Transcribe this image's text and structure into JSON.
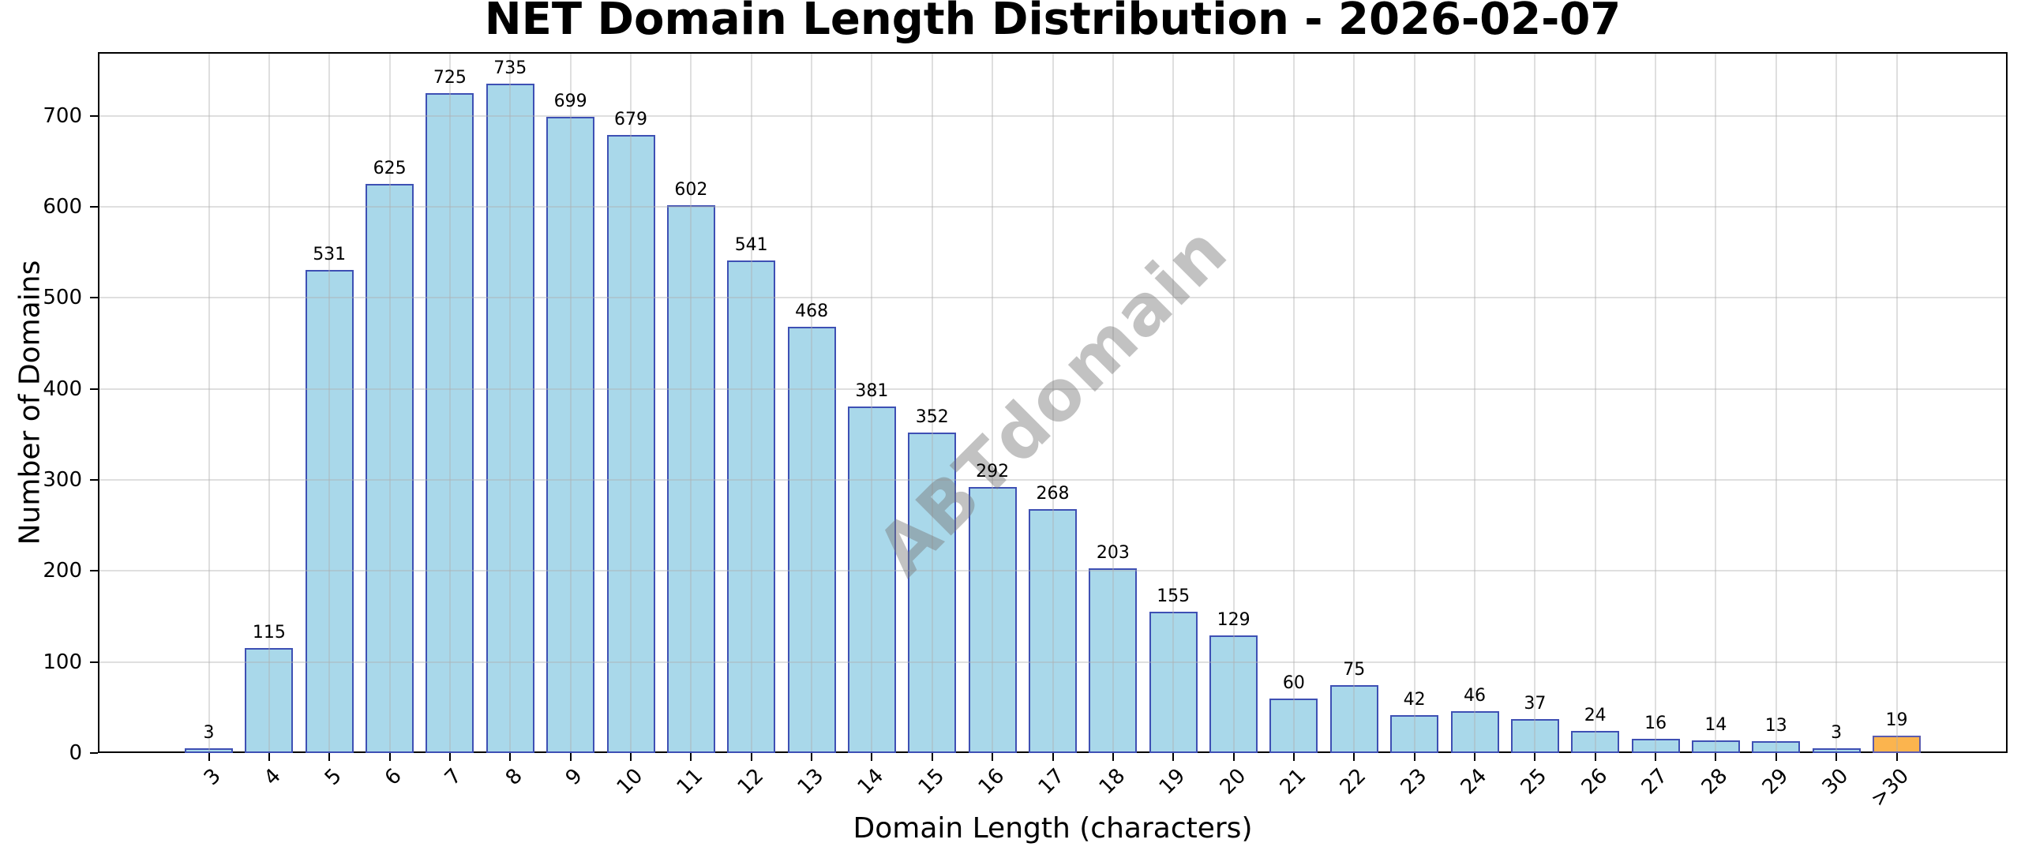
{
  "chart_data": {
    "type": "bar",
    "title": "NET Domain Length Distribution - 2026-02-07",
    "xlabel": "Domain Length (characters)",
    "ylabel": "Number of Domains",
    "watermark": "ABTdomain",
    "categories": [
      "3",
      "4",
      "5",
      "6",
      "7",
      "8",
      "9",
      "10",
      "11",
      "12",
      "13",
      "14",
      "15",
      "16",
      "17",
      "18",
      "19",
      "20",
      "21",
      "22",
      "23",
      "24",
      "25",
      "26",
      "27",
      "28",
      "29",
      "30",
      ">30"
    ],
    "values": [
      3,
      115,
      531,
      625,
      725,
      735,
      699,
      679,
      602,
      541,
      468,
      381,
      352,
      292,
      268,
      203,
      155,
      129,
      60,
      75,
      42,
      46,
      37,
      24,
      16,
      14,
      13,
      3,
      19
    ],
    "ylim": [
      0,
      770
    ],
    "yticks": [
      0,
      100,
      200,
      300,
      400,
      500,
      600,
      700
    ],
    "grid": true,
    "legend": "none",
    "bar_fill": "#A9D8EA",
    "bar_edge": "#3E50B4",
    "highlight_index": 28,
    "highlight_fill": "#FBB44E",
    "highlight_edge": "#5B5BAD",
    "axis_color": "#000000",
    "label_color": "#000000"
  }
}
